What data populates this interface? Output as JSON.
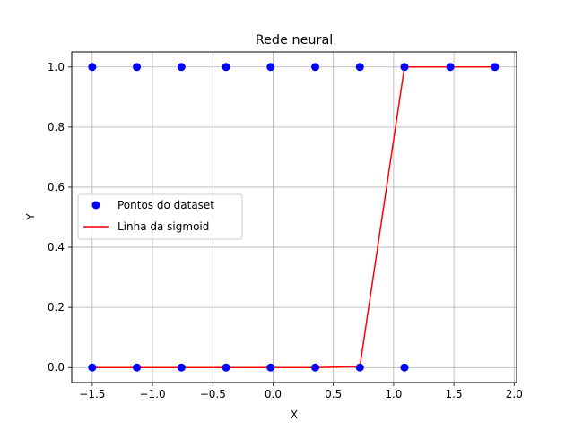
{
  "chart_data": {
    "type": "scatter",
    "title": "Rede neural",
    "xlabel": "X",
    "ylabel": "Y",
    "xlim": [
      -1.67,
      2.02
    ],
    "ylim": [
      -0.05,
      1.05
    ],
    "grid": true,
    "legend_position": "center-left",
    "x_ticks": [
      -1.5,
      -1.0,
      -0.5,
      0.0,
      0.5,
      1.0,
      1.5,
      2.0
    ],
    "x_tick_labels": [
      "−1.5",
      "−1.0",
      "−0.5",
      "0.0",
      "0.5",
      "1.0",
      "1.5",
      "2.0"
    ],
    "y_ticks": [
      0.0,
      0.2,
      0.4,
      0.6,
      0.8,
      1.0
    ],
    "y_tick_labels": [
      "0.0",
      "0.2",
      "0.4",
      "0.6",
      "0.8",
      "1.0"
    ],
    "series": [
      {
        "name": "Pontos do dataset",
        "kind": "scatter",
        "color": "#0000ff",
        "points": [
          [
            -1.5,
            1
          ],
          [
            -1.13,
            1
          ],
          [
            -0.76,
            1
          ],
          [
            -0.39,
            1
          ],
          [
            -0.02,
            1
          ],
          [
            0.35,
            1
          ],
          [
            0.72,
            1
          ],
          [
            1.09,
            1
          ],
          [
            1.47,
            1
          ],
          [
            1.84,
            1
          ],
          [
            -1.5,
            0
          ],
          [
            -1.13,
            0
          ],
          [
            -0.76,
            0
          ],
          [
            -0.39,
            0
          ],
          [
            -0.02,
            0
          ],
          [
            0.35,
            0
          ],
          [
            0.72,
            0
          ],
          [
            1.09,
            0
          ]
        ]
      },
      {
        "name": "Linha da sigmoid",
        "kind": "line",
        "color": "#ff0000",
        "points": [
          [
            -1.5,
            0
          ],
          [
            -1.13,
            0
          ],
          [
            -0.76,
            0
          ],
          [
            -0.39,
            0
          ],
          [
            -0.02,
            0
          ],
          [
            0.35,
            0
          ],
          [
            0.72,
            0.003
          ],
          [
            1.09,
            1
          ],
          [
            1.47,
            1
          ],
          [
            1.84,
            1
          ]
        ]
      }
    ]
  }
}
